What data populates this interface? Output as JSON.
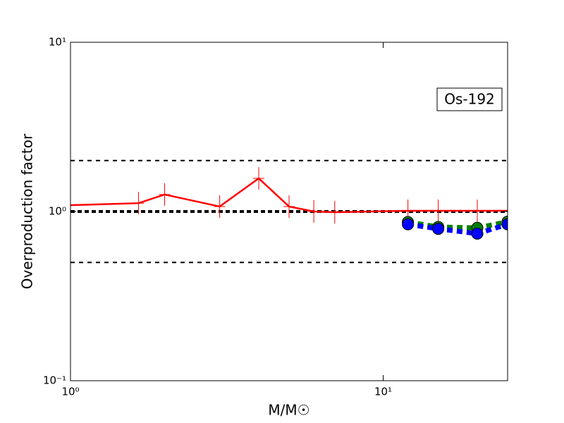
{
  "chart_data": {
    "type": "line",
    "xlabel": "M/M☉",
    "ylabel": "Overproduction factor",
    "annotation": "Os-192",
    "xscale": "log",
    "yscale": "log",
    "xlim": [
      1,
      25
    ],
    "ylim": [
      0.1,
      10
    ],
    "xticks": [
      {
        "value": 1,
        "label": "10⁰"
      },
      {
        "value": 10,
        "label": "10¹"
      }
    ],
    "yticks": [
      {
        "value": 0.1,
        "label": "10⁻¹"
      },
      {
        "value": 1,
        "label": "10⁰"
      },
      {
        "value": 10,
        "label": "10¹"
      }
    ],
    "hlines": [
      2,
      1,
      0.5
    ],
    "series": [
      {
        "color": "#ff0000",
        "marker": "plus",
        "dashed": false,
        "x": [
          1,
          1.65,
          2,
          3,
          4,
          5,
          6,
          7,
          12,
          15,
          20,
          25
        ],
        "values": [
          1.09,
          1.12,
          1.26,
          1.07,
          1.57,
          1.07,
          1.0,
          0.99,
          1.01,
          1.01,
          1.01,
          1.01
        ]
      },
      {
        "color": "#008000",
        "marker": "circle",
        "dashed": true,
        "x": [
          12,
          15,
          20,
          25
        ],
        "values": [
          0.866,
          0.81,
          0.8,
          0.87
        ]
      },
      {
        "color": "#0000ff",
        "marker": "circle",
        "dashed": true,
        "x": [
          12,
          15,
          20,
          25
        ],
        "values": [
          0.84,
          0.79,
          0.74,
          0.84
        ]
      }
    ]
  }
}
